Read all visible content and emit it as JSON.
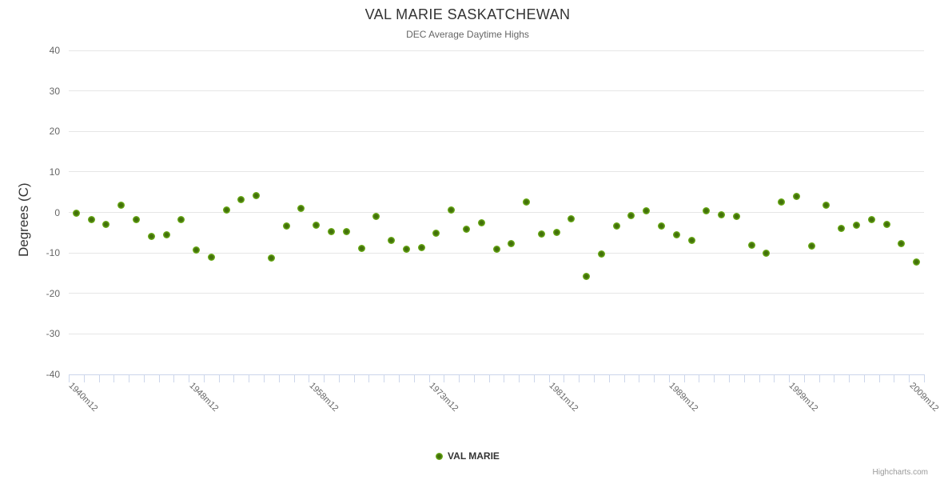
{
  "header": {
    "title": "VAL MARIE SASKATCHEWAN",
    "subtitle": "DEC Average Daytime Highs"
  },
  "legend": {
    "series_label": "VAL MARIE"
  },
  "credits": {
    "label": "Highcharts.com"
  },
  "colors": {
    "point_outer": "#7fca24",
    "point_inner": "#42700a",
    "gridline": "#e6e6e6",
    "axis_line": "#ccd6eb",
    "title_text": "#333333",
    "muted_text": "#666666",
    "credits_text": "#999999"
  },
  "chart_data": {
    "type": "scatter",
    "title": "VAL MARIE SASKATCHEWAN",
    "subtitle": "DEC Average Daytime Highs",
    "xlabel": "",
    "ylabel": "Degrees (C)",
    "ylim": [
      -40,
      40
    ],
    "y_ticks": [
      40,
      30,
      20,
      10,
      0,
      -10,
      -20,
      -30,
      -40
    ],
    "grid": "horizontal-only",
    "legend_position": "bottom-center",
    "x_tick_labels": [
      "1940m12",
      "1948m12",
      "1958m12",
      "1973m12",
      "1981m12",
      "1989m12",
      "1999m12",
      "2009m12"
    ],
    "x_tick_indices": [
      0,
      8,
      16,
      24,
      32,
      40,
      48,
      56
    ],
    "x_label_rotation_deg": 45,
    "series": [
      {
        "name": "VAL MARIE",
        "color": "#7fca24",
        "values": [
          -0.2,
          -1.8,
          -3.0,
          1.8,
          -1.7,
          -6.0,
          -5.6,
          -1.7,
          -9.2,
          -11.0,
          0.6,
          3.2,
          4.2,
          -11.2,
          -3.4,
          0.9,
          -3.2,
          -4.7,
          -4.8,
          -8.8,
          -1.0,
          -7.0,
          -9.0,
          -8.7,
          -5.2,
          0.5,
          -4.1,
          -2.6,
          -9.1,
          -7.8,
          2.5,
          -5.4,
          -4.9,
          -1.5,
          -15.8,
          -10.2,
          -3.3,
          -0.7,
          0.4,
          -3.3,
          -5.5,
          -7.0,
          0.4,
          -0.5,
          -0.9,
          -8.0,
          -10.1,
          2.5,
          3.9,
          -8.3,
          1.7,
          -4.0,
          -3.1,
          -1.7,
          -2.9,
          -7.7,
          -12.2
        ]
      }
    ]
  }
}
